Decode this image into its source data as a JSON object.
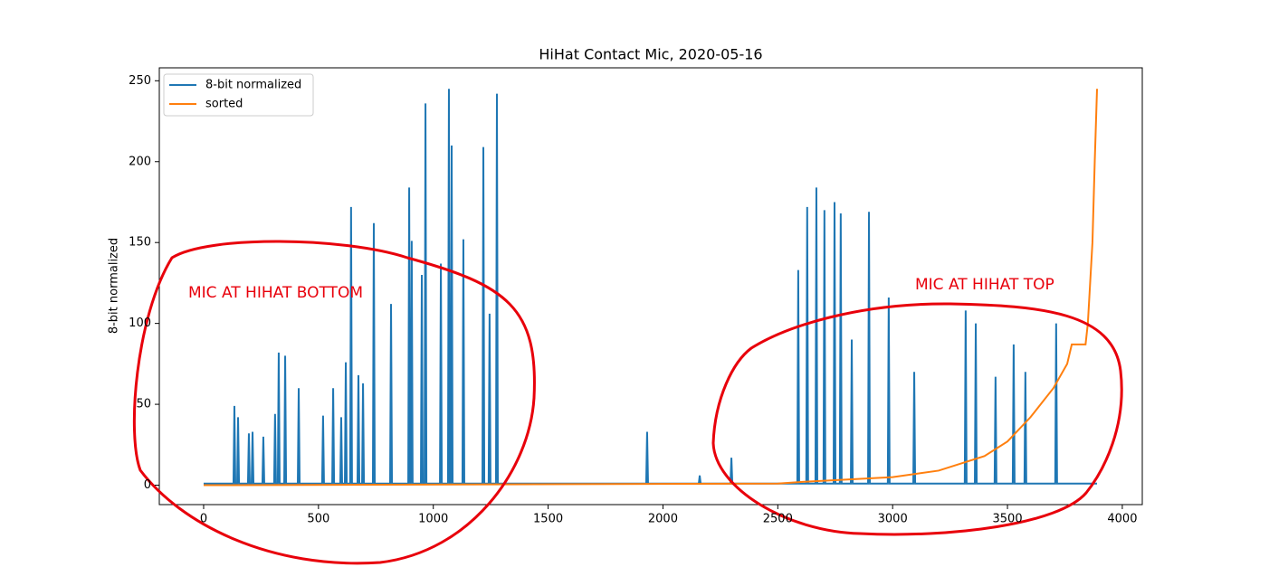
{
  "chart_data": {
    "type": "line",
    "title": "HiHat Contact Mic, 2020-05-16",
    "ylabel": "8-bit normalized",
    "xlim": [
      -193,
      4087
    ],
    "ylim": [
      -12,
      258
    ],
    "xticks": [
      0,
      500,
      1000,
      1500,
      2000,
      2500,
      3000,
      3500,
      4000
    ],
    "yticks": [
      0,
      50,
      100,
      150,
      200,
      250
    ],
    "legend": "upper left",
    "series": [
      {
        "name": "8-bit normalized",
        "color": "#1f77b4",
        "x": [
          0,
          130,
          134,
          138,
          146,
          150,
          154,
          193,
          197,
          201,
          209,
          213,
          217,
          256,
          260,
          264,
          307,
          311,
          315,
          323,
          327,
          331,
          351,
          355,
          359,
          410,
          414,
          418,
          516,
          520,
          524,
          560,
          564,
          568,
          595,
          599,
          603,
          615,
          619,
          623,
          638,
          642,
          646,
          670,
          674,
          678,
          690,
          694,
          698,
          737,
          741,
          745,
          812,
          816,
          820,
          891,
          895,
          899,
          902,
          906,
          910,
          946,
          950,
          954,
          962,
          966,
          970,
          1029,
          1033,
          1037,
          1064,
          1068,
          1072,
          1076,
          1080,
          1084,
          1127,
          1131,
          1135,
          1214,
          1218,
          1222,
          1241,
          1245,
          1249,
          1273,
          1277,
          1281,
          1927,
          1931,
          1935,
          2156,
          2160,
          2164,
          2294,
          2298,
          2302,
          2585,
          2589,
          2593,
          2624,
          2628,
          2632,
          2664,
          2668,
          2672,
          2699,
          2703,
          2707,
          2743,
          2747,
          2751,
          2770,
          2774,
          2778,
          2818,
          2822,
          2826,
          2893,
          2897,
          2901,
          2979,
          2983,
          2987,
          3090,
          3094,
          3098,
          3314,
          3318,
          3322,
          3358,
          3362,
          3366,
          3444,
          3448,
          3452,
          3523,
          3527,
          3531,
          3574,
          3578,
          3582,
          3708,
          3712,
          3716,
          3890
        ],
        "values": [
          1,
          1,
          49,
          1,
          1,
          42,
          1,
          1,
          32,
          1,
          1,
          33,
          1,
          1,
          30,
          1,
          1,
          44,
          1,
          1,
          82,
          1,
          1,
          80,
          1,
          1,
          60,
          1,
          1,
          43,
          1,
          1,
          60,
          1,
          1,
          42,
          1,
          1,
          76,
          1,
          1,
          172,
          1,
          1,
          68,
          1,
          1,
          63,
          1,
          1,
          162,
          1,
          1,
          112,
          1,
          1,
          184,
          1,
          1,
          151,
          1,
          1,
          130,
          1,
          1,
          236,
          1,
          1,
          137,
          1,
          1,
          245,
          1,
          1,
          210,
          1,
          1,
          152,
          1,
          1,
          209,
          1,
          1,
          106,
          1,
          1,
          242,
          1,
          1,
          33,
          1,
          1,
          6,
          1,
          1,
          17,
          1,
          1,
          133,
          1,
          1,
          172,
          1,
          1,
          184,
          1,
          1,
          170,
          1,
          1,
          175,
          1,
          1,
          168,
          1,
          1,
          90,
          1,
          1,
          169,
          1,
          1,
          116,
          1,
          1,
          70,
          1,
          1,
          108,
          1,
          1,
          100,
          1,
          1,
          67,
          1,
          1,
          87,
          1,
          1,
          70,
          1,
          1,
          100,
          1,
          1
        ]
      },
      {
        "name": "sorted",
        "color": "#ff7f0e",
        "x": [
          0,
          2500,
          2600,
          3000,
          3200,
          3400,
          3500,
          3600,
          3700,
          3760,
          3780,
          3840,
          3850,
          3870,
          3880,
          3890
        ],
        "values": [
          0,
          1,
          2,
          5,
          9,
          18,
          27,
          42,
          60,
          75,
          87,
          87,
          100,
          150,
          200,
          245
        ]
      }
    ],
    "annotations": [
      "MIC AT HIHAT BOTTOM",
      "MIC AT HIHAT TOP"
    ]
  }
}
